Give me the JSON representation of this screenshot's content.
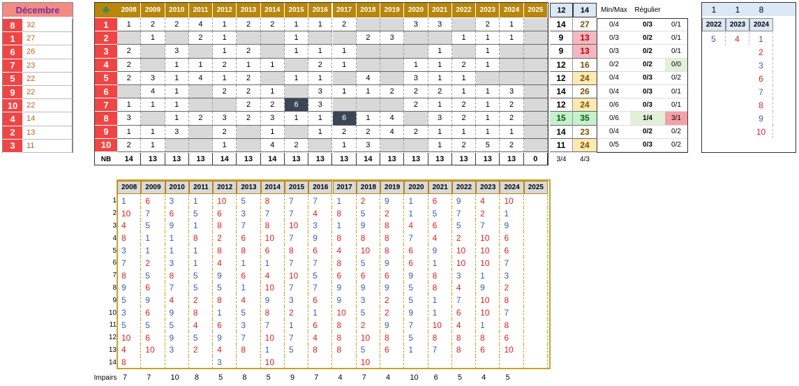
{
  "left": {
    "title": "Décembre",
    "rows": [
      {
        "num": 8,
        "count": 32
      },
      {
        "num": 1,
        "count": 27
      },
      {
        "num": 6,
        "count": 26
      },
      {
        "num": 7,
        "count": 23
      },
      {
        "num": 5,
        "count": 22
      },
      {
        "num": 9,
        "count": 22
      },
      {
        "num": 10,
        "count": 22
      },
      {
        "num": 4,
        "count": 14
      },
      {
        "num": 2,
        "count": 13
      },
      {
        "num": 3,
        "count": 11
      }
    ]
  },
  "grid": {
    "years": [
      2008,
      2009,
      2010,
      2011,
      2012,
      2013,
      2014,
      2015,
      2016,
      2017,
      2018,
      2019,
      2020,
      2021,
      2022,
      2023,
      2024,
      2025
    ],
    "head_extra": [
      12,
      14
    ],
    "head_labels": [
      "Min/Max",
      "Régulier"
    ],
    "rows": [
      {
        "label": 1,
        "cells": [
          1,
          2,
          2,
          4,
          1,
          2,
          2,
          1,
          1,
          2,
          null,
          null,
          3,
          3,
          null,
          2,
          1,
          null
        ],
        "total1": 14,
        "total2": 27,
        "minmax": "0/4",
        "regular": "0/3",
        "last": "0/1"
      },
      {
        "label": 2,
        "cells": [
          null,
          1,
          null,
          2,
          1,
          null,
          null,
          1,
          null,
          null,
          2,
          3,
          null,
          null,
          1,
          1,
          1,
          null
        ],
        "total1": 9,
        "total2": 13,
        "minmax": "0/3",
        "regular": "0/2",
        "last": "0/1"
      },
      {
        "label": 3,
        "cells": [
          2,
          null,
          3,
          null,
          1,
          2,
          null,
          1,
          1,
          1,
          null,
          null,
          null,
          1,
          null,
          1,
          null,
          null
        ],
        "total1": 9,
        "total2": 13,
        "minmax": "0/3",
        "regular": "0/2",
        "last": "0/1"
      },
      {
        "label": 4,
        "cells": [
          2,
          null,
          1,
          1,
          2,
          1,
          1,
          null,
          2,
          1,
          null,
          null,
          1,
          1,
          2,
          1,
          null,
          null
        ],
        "total1": 12,
        "total2": 16,
        "minmax": "0/2",
        "regular": "0/2",
        "last": "0/0"
      },
      {
        "label": 5,
        "cells": [
          2,
          3,
          1,
          4,
          1,
          2,
          null,
          1,
          1,
          null,
          4,
          null,
          3,
          1,
          1,
          null,
          null,
          null
        ],
        "total1": 12,
        "total2": 24,
        "minmax": "0/4",
        "regular": "0/3",
        "last": "0/2"
      },
      {
        "label": 6,
        "cells": [
          null,
          4,
          1,
          null,
          2,
          2,
          1,
          null,
          3,
          1,
          1,
          2,
          2,
          2,
          1,
          1,
          3,
          null
        ],
        "total1": 14,
        "total2": 26,
        "minmax": "0/4",
        "regular": "0/3",
        "last": "0/1"
      },
      {
        "label": 7,
        "cells": [
          1,
          1,
          1,
          null,
          null,
          2,
          2,
          6,
          3,
          null,
          null,
          null,
          2,
          1,
          2,
          1,
          2,
          null
        ],
        "total1": 12,
        "total2": 24,
        "minmax": "0/6",
        "regular": "0/3",
        "last": "0/1"
      },
      {
        "label": 8,
        "cells": [
          3,
          null,
          1,
          2,
          3,
          2,
          3,
          1,
          1,
          6,
          1,
          4,
          null,
          3,
          2,
          1,
          2,
          null
        ],
        "total1": 15,
        "total2": 35,
        "minmax": "0/6",
        "regular": "1/4",
        "last": "3/1"
      },
      {
        "label": 9,
        "cells": [
          1,
          1,
          3,
          null,
          2,
          null,
          1,
          null,
          1,
          2,
          2,
          4,
          2,
          1,
          1,
          1,
          1,
          null
        ],
        "total1": 14,
        "total2": 23,
        "minmax": "0/4",
        "regular": "0/2",
        "last": "0/2"
      },
      {
        "label": 10,
        "cells": [
          2,
          1,
          null,
          null,
          1,
          null,
          4,
          2,
          null,
          1,
          3,
          null,
          null,
          1,
          2,
          5,
          2,
          null
        ],
        "total1": 11,
        "total2": 24,
        "minmax": "0/5",
        "regular": "0/3",
        "last": "0/2"
      }
    ],
    "nb_label": "NB",
    "nb": [
      14,
      13,
      13,
      13,
      14,
      13,
      14,
      13,
      13,
      13,
      14,
      13,
      13,
      13,
      13,
      13,
      13,
      0
    ],
    "nb_extra": [
      "3/4",
      "4/3"
    ]
  },
  "right": {
    "header": [
      1,
      1,
      8
    ],
    "years": [
      2022,
      2023,
      2024
    ],
    "columns": [
      [
        5
      ],
      [
        4
      ],
      [
        1,
        2,
        3,
        6,
        7,
        8,
        9,
        10
      ]
    ]
  },
  "bottom": {
    "years": [
      2008,
      2009,
      2010,
      2011,
      2012,
      2013,
      2014,
      2015,
      2016,
      2017,
      2018,
      2019,
      2020,
      2021,
      2022,
      2023,
      2024,
      2025
    ],
    "rows": [
      {
        "label": 1,
        "cells": [
          1,
          6,
          3,
          1,
          10,
          5,
          8,
          7,
          7,
          1,
          2,
          9,
          1,
          6,
          9,
          4,
          10,
          null
        ]
      },
      {
        "label": 2,
        "cells": [
          10,
          7,
          6,
          5,
          6,
          3,
          7,
          7,
          4,
          8,
          5,
          2,
          1,
          5,
          7,
          2,
          1,
          null
        ]
      },
      {
        "label": 3,
        "cells": [
          4,
          5,
          9,
          1,
          8,
          7,
          8,
          10,
          3,
          1,
          9,
          8,
          4,
          6,
          5,
          7,
          9,
          null
        ]
      },
      {
        "label": 4,
        "cells": [
          8,
          1,
          1,
          8,
          2,
          6,
          10,
          7,
          9,
          8,
          8,
          8,
          7,
          4,
          2,
          10,
          6,
          null
        ]
      },
      {
        "label": 5,
        "cells": [
          3,
          1,
          1,
          1,
          8,
          8,
          6,
          8,
          6,
          4,
          10,
          8,
          6,
          9,
          10,
          10,
          6,
          null
        ]
      },
      {
        "label": 6,
        "cells": [
          7,
          2,
          3,
          1,
          4,
          1,
          1,
          7,
          7,
          8,
          5,
          9,
          6,
          1,
          10,
          10,
          7,
          null
        ]
      },
      {
        "label": 7,
        "cells": [
          8,
          5,
          8,
          5,
          9,
          6,
          4,
          10,
          5,
          6,
          6,
          6,
          9,
          8,
          3,
          1,
          3,
          null
        ]
      },
      {
        "label": 8,
        "cells": [
          9,
          6,
          7,
          5,
          5,
          1,
          10,
          7,
          7,
          9,
          9,
          9,
          5,
          8,
          4,
          9,
          2,
          null
        ]
      },
      {
        "label": 9,
        "cells": [
          5,
          9,
          4,
          2,
          8,
          4,
          9,
          3,
          6,
          9,
          3,
          2,
          5,
          1,
          7,
          10,
          8,
          null
        ]
      },
      {
        "label": 10,
        "cells": [
          3,
          6,
          9,
          8,
          1,
          5,
          8,
          2,
          1,
          10,
          5,
          2,
          9,
          1,
          6,
          10,
          7,
          null
        ]
      },
      {
        "label": 11,
        "cells": [
          5,
          5,
          5,
          4,
          6,
          3,
          7,
          1,
          6,
          8,
          2,
          9,
          7,
          10,
          4,
          1,
          8,
          null
        ]
      },
      {
        "label": 12,
        "cells": [
          10,
          6,
          9,
          5,
          9,
          7,
          10,
          7,
          4,
          8,
          10,
          8,
          5,
          8,
          8,
          8,
          6,
          null
        ]
      },
      {
        "label": 13,
        "cells": [
          4,
          10,
          3,
          2,
          4,
          8,
          1,
          5,
          8,
          8,
          5,
          6,
          1,
          7,
          8,
          6,
          10,
          null
        ]
      },
      {
        "label": 14,
        "cells": [
          8,
          null,
          null,
          null,
          3,
          null,
          10,
          null,
          null,
          null,
          10,
          null,
          null,
          null,
          null,
          null,
          null,
          null
        ]
      }
    ],
    "impairs_label": "Impairs",
    "impairs": [
      7,
      7,
      10,
      8,
      5,
      8,
      5,
      9,
      7,
      4,
      7,
      4,
      10,
      6,
      5,
      4,
      5,
      null
    ]
  }
}
